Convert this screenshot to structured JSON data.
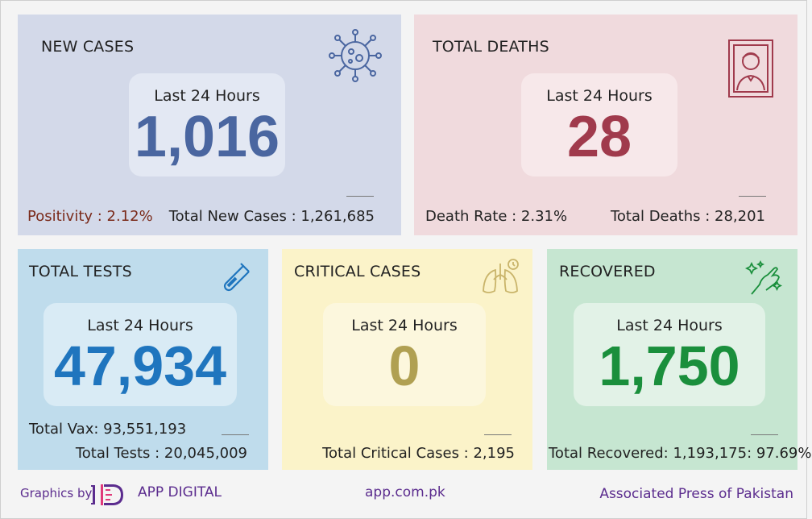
{
  "cards": {
    "new_cases": {
      "title": "NEW CASES",
      "period_label": "Last 24 Hours",
      "value": "1,016",
      "stat_left": "Positivity : 2.12%",
      "stat_right": "Total New Cases : 1,261,685",
      "icon": "virus-icon",
      "accent": "#4a66a0"
    },
    "total_deaths": {
      "title": "TOTAL DEATHS",
      "period_label": "Last 24 Hours",
      "value": "28",
      "stat_left": "Death Rate : 2.31%",
      "stat_right": "Total Deaths : 28,201",
      "icon": "portrait-frame-icon",
      "accent": "#a03a4c"
    },
    "total_tests": {
      "title": "TOTAL TESTS",
      "period_label": "Last 24 Hours",
      "value": "47,934",
      "stat_1": "Total Vax: 93,551,193",
      "stat_2": "Total Tests : 20,045,009",
      "icon": "test-tube-icon",
      "accent": "#1f75be"
    },
    "critical_cases": {
      "title": "CRITICAL CASES",
      "period_label": "Last 24 Hours",
      "value": "0",
      "stat_1": "Total Critical Cases : 2,195",
      "icon": "lungs-icon",
      "accent": "#b0a052"
    },
    "recovered": {
      "title": "RECOVERED",
      "period_label": "Last 24 Hours",
      "value": "1,750",
      "stat_1": "Total Recovered: 1,193,175: 97.69%",
      "icon": "clean-hands-icon",
      "accent": "#1a8f3c"
    }
  },
  "footer": {
    "graphics_by": "Graphics by",
    "brand": "APP DIGITAL",
    "website": "app.com.pk",
    "agency": "Associated Press of Pakistan"
  }
}
